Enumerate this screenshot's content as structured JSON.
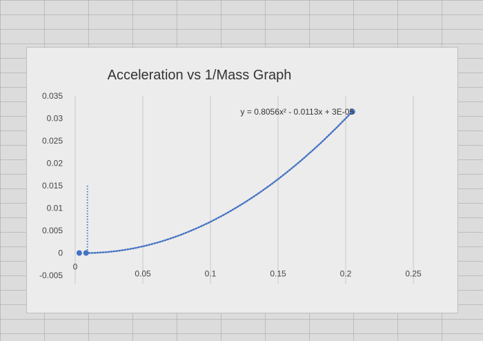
{
  "chart_data": {
    "type": "scatter",
    "title": "Acceleration vs 1/Mass Graph",
    "xlabel": "",
    "ylabel": "",
    "xlim": [
      0,
      0.25
    ],
    "ylim": [
      -0.005,
      0.035
    ],
    "x_ticks": [
      "0",
      "0.05",
      "0.1",
      "0.15",
      "0.2",
      "0.25"
    ],
    "y_ticks": [
      "0.035",
      "0.03",
      "0.025",
      "0.02",
      "0.015",
      "0.01",
      "0.005",
      "0",
      "-0.005"
    ],
    "grid": true,
    "series": [
      {
        "points": [
          {
            "x": 0.003,
            "y": 0
          },
          {
            "x": 0.008,
            "y": 0
          },
          {
            "x": 0.205,
            "y": 0.0315
          }
        ],
        "color": "#4472c4"
      }
    ],
    "trendline": {
      "type": "polynomial",
      "equation": "y = 0.8056x² - 0.0113x + 3E-05",
      "coefficients": [
        0.8056,
        -0.0113,
        3e-05
      ],
      "x_range": [
        0.008,
        0.205
      ],
      "style": "dotted",
      "color": "#4472c4"
    }
  },
  "colors": {
    "marker": "#4472c4",
    "trendline": "#4472c4",
    "grid": "#c8c8c8",
    "plot_bg": "#ececec"
  }
}
